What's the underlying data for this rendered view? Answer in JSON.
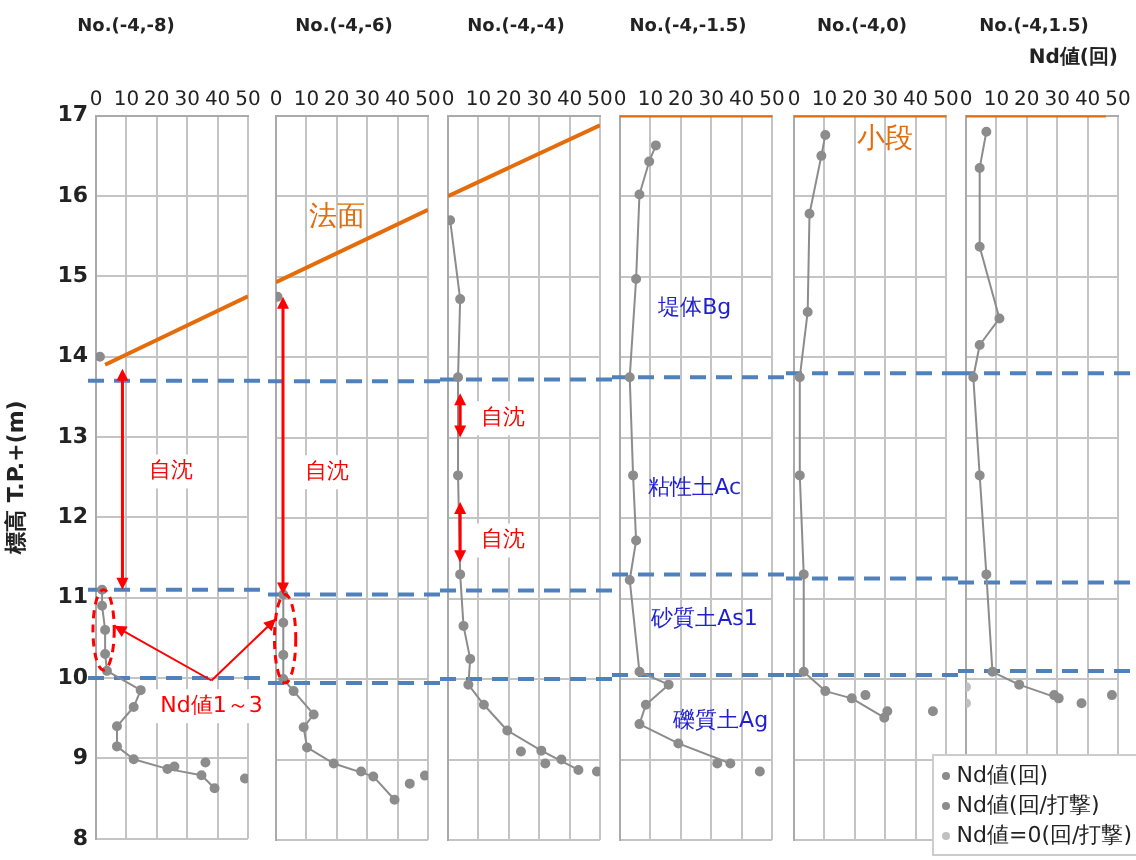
{
  "chart_data": [
    {
      "type": "line",
      "title": "No.(-4,-8)",
      "ylabel": "標高 T.P.+(m)",
      "xlim": [
        0,
        50
      ],
      "xticks": [
        0,
        10,
        20,
        30,
        40,
        50
      ],
      "ylim": [
        8,
        17
      ],
      "yticks": [
        8,
        9,
        10,
        11,
        12,
        13,
        14,
        15,
        16,
        17
      ],
      "grid": true,
      "series": [
        {
          "color": "#8c8c8c",
          "marker": "circle",
          "x": [
            1.3,
            1.5,
            2,
            2,
            3,
            3,
            3.6,
            14.7,
            12.4,
            6.9,
            6.9,
            12.4,
            23.5,
            34.7,
            39
          ],
          "values": [
            14.0,
            null,
            11.1,
            10.9,
            10.6,
            10.3,
            10.09,
            9.85,
            9.64,
            9.4,
            9.15,
            8.99,
            8.87,
            8.79,
            8.63
          ]
        },
        {
          "type": "scatter",
          "color": "#8c8c8c",
          "marker": "circle",
          "x": [
            25.8,
            36,
            49
          ],
          "values": [
            8.9,
            8.95,
            8.75
          ]
        },
        {
          "color": "#e46c0a",
          "marker": "none",
          "x": [
            3,
            50
          ],
          "values": [
            13.9,
            14.75
          ]
        }
      ],
      "ref_lines": [
        {
          "axis": "y",
          "value": 13.7,
          "color": "#4f81bd",
          "line_style": "dashed"
        },
        {
          "axis": "y",
          "value": 11.1,
          "color": "#4f81bd",
          "line_style": "dashed"
        },
        {
          "axis": "y",
          "value": 10.0,
          "color": "#4f81bd",
          "line_style": "dashed"
        }
      ],
      "annotations": [
        "自沈",
        "Nd値1～3"
      ]
    },
    {
      "type": "line",
      "title": "No.(-4,-6)",
      "xlim": [
        0,
        50
      ],
      "xticks": [
        0,
        10,
        20,
        30,
        40,
        50
      ],
      "ylim": [
        8,
        17
      ],
      "yticks": [
        8,
        9,
        10,
        11,
        12,
        13,
        14,
        15,
        16,
        17
      ],
      "grid": true,
      "tick_labels": "x",
      "series": [
        {
          "color": "#8c8c8c",
          "marker": "circle",
          "x": [
            0.5,
            1,
            2.4,
            2.4,
            2.4,
            2.4,
            5.8,
            12.4,
            9.1,
            10.2,
            19,
            32,
            39
          ],
          "values": [
            14.75,
            null,
            11.05,
            10.7,
            10.3,
            10.0,
            9.85,
            9.56,
            9.4,
            9.15,
            8.95,
            8.79,
            8.5
          ]
        },
        {
          "type": "scatter",
          "color": "#8c8c8c",
          "marker": "circle",
          "x": [
            28,
            44,
            49
          ],
          "values": [
            8.85,
            8.7,
            8.8
          ]
        },
        {
          "color": "#e46c0a",
          "marker": "none",
          "x": [
            0,
            50
          ],
          "values": [
            14.93,
            15.83
          ]
        }
      ],
      "ref_lines": [
        {
          "axis": "y",
          "value": 13.7,
          "color": "#4f81bd",
          "line_style": "dashed"
        },
        {
          "axis": "y",
          "value": 11.05,
          "color": "#4f81bd",
          "line_style": "dashed"
        },
        {
          "axis": "y",
          "value": 9.95,
          "color": "#4f81bd",
          "line_style": "dashed"
        }
      ],
      "annotations": [
        "法面",
        "自沈"
      ]
    },
    {
      "type": "line",
      "title": "No.(-4,-4)",
      "xlim": [
        0,
        50
      ],
      "xticks": [
        0,
        10,
        20,
        30,
        40,
        50
      ],
      "ylim": [
        8,
        17
      ],
      "yticks": [
        8,
        9,
        10,
        11,
        12,
        13,
        14,
        15,
        16,
        17
      ],
      "grid": true,
      "tick_labels": "x",
      "series": [
        {
          "color": "#8c8c8c",
          "marker": "circle",
          "x": [
            0.7,
            4,
            3.3,
            3.3,
            4,
            5.1,
            7.3,
            6.7,
            11.8,
            19.5,
            30.7,
            42.9
          ],
          "values": [
            15.7,
            14.72,
            13.75,
            12.53,
            11.3,
            10.66,
            10.25,
            9.93,
            9.68,
            9.36,
            9.11,
            8.87
          ]
        },
        {
          "type": "scatter",
          "color": "#8c8c8c",
          "marker": "circle",
          "x": [
            24,
            32,
            37.3,
            49
          ],
          "values": [
            9.1,
            8.95,
            9.0,
            8.85
          ]
        },
        {
          "color": "#e46c0a",
          "marker": "none",
          "x": [
            0,
            50
          ],
          "values": [
            16.0,
            16.88
          ]
        }
      ],
      "ref_lines": [
        {
          "axis": "y",
          "value": 13.72,
          "color": "#4f81bd",
          "line_style": "dashed"
        },
        {
          "axis": "y",
          "value": 11.1,
          "color": "#4f81bd",
          "line_style": "dashed"
        },
        {
          "axis": "y",
          "value": 10.0,
          "color": "#4f81bd",
          "line_style": "dashed"
        }
      ],
      "annotations": [
        "自沈",
        "自沈"
      ]
    },
    {
      "type": "line",
      "title": "No.(-4,-1.5)",
      "xlim": [
        0,
        50
      ],
      "xticks": [
        0,
        10,
        20,
        30,
        40,
        50
      ],
      "ylim": [
        8,
        17
      ],
      "yticks": [
        8,
        9,
        10,
        11,
        12,
        13,
        14,
        15,
        16,
        17
      ],
      "grid": true,
      "tick_labels": "x",
      "series": [
        {
          "color": "#8c8c8c",
          "marker": "circle",
          "x": [
            11.8,
            9.6,
            6.4,
            5.3,
            3.2,
            4.3,
            5.3,
            3.2,
            6.4,
            16,
            8.5,
            6.4,
            19.2,
            36.3
          ],
          "values": [
            16.63,
            16.43,
            16.02,
            14.97,
            13.75,
            12.53,
            11.72,
            11.23,
            10.09,
            9.93,
            9.68,
            9.44,
            9.2,
            8.95
          ]
        },
        {
          "type": "scatter",
          "color": "#8c8c8c",
          "marker": "circle",
          "x": [
            32,
            46
          ],
          "values": [
            8.95,
            8.85
          ]
        },
        {
          "color": "#e46c0a",
          "marker": "none",
          "x": [
            0,
            50
          ],
          "values": [
            17,
            17
          ]
        }
      ],
      "ref_lines": [
        {
          "axis": "y",
          "value": 13.75,
          "color": "#4f81bd",
          "line_style": "dashed"
        },
        {
          "axis": "y",
          "value": 11.3,
          "color": "#4f81bd",
          "line_style": "dashed"
        },
        {
          "axis": "y",
          "value": 10.05,
          "color": "#4f81bd",
          "line_style": "dashed"
        }
      ],
      "annotations": [
        "堤体Bg",
        "粘性土Ac",
        "砂質土As1",
        "礫質土Ag"
      ]
    },
    {
      "type": "line",
      "title": "No.(-4,0)",
      "xlim": [
        0,
        50
      ],
      "xticks": [
        0,
        10,
        20,
        30,
        40,
        50
      ],
      "ylim": [
        8,
        17
      ],
      "yticks": [
        8,
        9,
        10,
        11,
        12,
        13,
        14,
        15,
        16,
        17
      ],
      "grid": true,
      "tick_labels": "x",
      "series": [
        {
          "color": "#8c8c8c",
          "marker": "circle",
          "x": [
            10.3,
            9,
            5.1,
            4.5,
            1.9,
            1.9,
            3.2,
            3.2,
            10.3,
            19,
            29.7
          ],
          "values": [
            16.76,
            16.5,
            15.78,
            14.56,
            13.75,
            12.53,
            11.3,
            10.09,
            9.85,
            9.76,
            9.52
          ]
        },
        {
          "type": "scatter",
          "color": "#8c8c8c",
          "marker": "circle",
          "x": [
            23.5,
            30.7,
            45.7
          ],
          "values": [
            9.8,
            9.6,
            9.6
          ]
        },
        {
          "color": "#e46c0a",
          "marker": "none",
          "x": [
            0,
            50
          ],
          "values": [
            17,
            17
          ]
        }
      ],
      "ref_lines": [
        {
          "axis": "y",
          "value": 13.8,
          "color": "#4f81bd",
          "line_style": "dashed"
        },
        {
          "axis": "y",
          "value": 11.25,
          "color": "#4f81bd",
          "line_style": "dashed"
        },
        {
          "axis": "y",
          "value": 10.05,
          "color": "#4f81bd",
          "line_style": "dashed"
        }
      ],
      "annotations": [
        "小段"
      ]
    },
    {
      "type": "line",
      "title": "No.(-4,1.5)",
      "xlabel": "Nd値(回)",
      "xlim": [
        0,
        50
      ],
      "xticks": [
        0,
        10,
        20,
        30,
        40,
        50
      ],
      "ylim": [
        8,
        17
      ],
      "yticks": [
        8,
        9,
        10,
        11,
        12,
        13,
        14,
        15,
        16,
        17
      ],
      "grid": true,
      "tick_labels": "x",
      "legend": "bottom right",
      "series": [
        {
          "name": "Nd値(回)",
          "color": "#8c8c8c",
          "marker": "circle",
          "x": [
            6.7,
            4.5,
            4.5,
            11,
            4.5,
            2.4,
            4.5,
            6.7,
            8.7,
            17.5,
            30.5
          ],
          "values": [
            16.8,
            16.35,
            15.37,
            14.48,
            14.15,
            13.75,
            12.53,
            11.3,
            10.09,
            9.93,
            9.76
          ]
        },
        {
          "type": "scatter",
          "name": "Nd値(回/打撃)",
          "color": "#8c8c8c",
          "marker": "circle",
          "x": [
            29,
            38,
            48
          ],
          "values": [
            9.8,
            9.7,
            9.8
          ]
        },
        {
          "type": "scatter",
          "name": "Nd値=0(回/打撃)",
          "color": "#c0c0c0",
          "marker": "circle",
          "x": [
            0,
            0
          ],
          "values": [
            9.9,
            9.7
          ]
        },
        {
          "color": "#e46c0a",
          "marker": "none",
          "x": [
            0,
            46
          ],
          "values": [
            17,
            17
          ]
        }
      ],
      "ref_lines": [
        {
          "axis": "y",
          "value": 13.8,
          "color": "#4f81bd",
          "line_style": "dashed"
        },
        {
          "axis": "y",
          "value": 11.2,
          "color": "#4f81bd",
          "line_style": "dashed"
        },
        {
          "axis": "y",
          "value": 10.1,
          "color": "#4f81bd",
          "line_style": "dashed"
        }
      ]
    }
  ]
}
